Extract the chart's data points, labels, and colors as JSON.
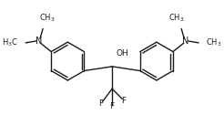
{
  "bg_color": "#ffffff",
  "line_color": "#1a1a1a",
  "line_width": 1.0,
  "font_size": 6.5,
  "fig_width": 2.46,
  "fig_height": 1.49,
  "dpi": 100,
  "xlim": [
    0,
    10
  ],
  "ylim": [
    0,
    6.06
  ]
}
